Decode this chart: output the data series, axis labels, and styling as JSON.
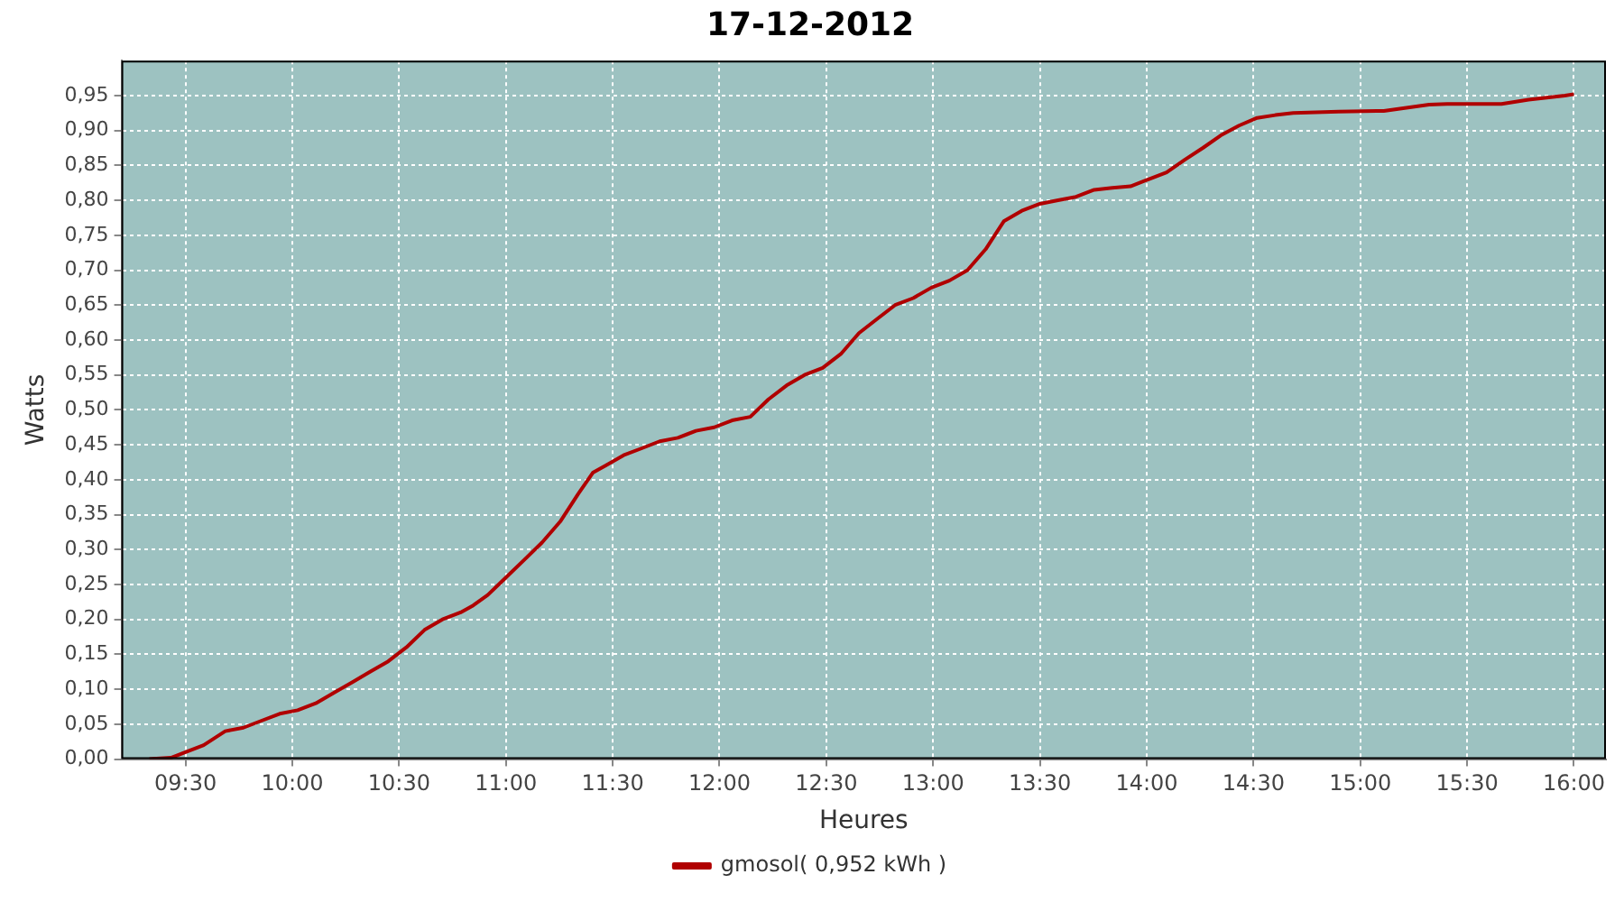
{
  "chart_data": {
    "type": "line",
    "title": "17-12-2012",
    "xlabel": "Heures",
    "ylabel": "Watts",
    "xlim": [
      9.2,
      16.15
    ],
    "xticks": [
      {
        "value": 9.5,
        "label": "09:30"
      },
      {
        "value": 10,
        "label": "10:00"
      },
      {
        "value": 10.5,
        "label": "10:30"
      },
      {
        "value": 11,
        "label": "11:00"
      },
      {
        "value": 11.5,
        "label": "11:30"
      },
      {
        "value": 12,
        "label": "12:00"
      },
      {
        "value": 12.5,
        "label": "12:30"
      },
      {
        "value": 13,
        "label": "13:00"
      },
      {
        "value": 13.5,
        "label": "13:30"
      },
      {
        "value": 14,
        "label": "14:00"
      },
      {
        "value": 14.5,
        "label": "14:30"
      },
      {
        "value": 15,
        "label": "15:00"
      },
      {
        "value": 15.5,
        "label": "15:30"
      },
      {
        "value": 16,
        "label": "16:00"
      }
    ],
    "ylim": [
      0,
      1.0
    ],
    "yticks": [
      {
        "value": 0,
        "label": "0,00"
      },
      {
        "value": 0.05,
        "label": "0,05"
      },
      {
        "value": 0.1,
        "label": "0,10"
      },
      {
        "value": 0.15,
        "label": "0,15"
      },
      {
        "value": 0.2,
        "label": "0,20"
      },
      {
        "value": 0.25,
        "label": "0,25"
      },
      {
        "value": 0.3,
        "label": "0,30"
      },
      {
        "value": 0.35,
        "label": "0,35"
      },
      {
        "value": 0.4,
        "label": "0,40"
      },
      {
        "value": 0.45,
        "label": "0,45"
      },
      {
        "value": 0.5,
        "label": "0,50"
      },
      {
        "value": 0.55,
        "label": "0,55"
      },
      {
        "value": 0.6,
        "label": "0,60"
      },
      {
        "value": 0.65,
        "label": "0,65"
      },
      {
        "value": 0.7,
        "label": "0,70"
      },
      {
        "value": 0.75,
        "label": "0,75"
      },
      {
        "value": 0.8,
        "label": "0,80"
      },
      {
        "value": 0.85,
        "label": "0,85"
      },
      {
        "value": 0.9,
        "label": "0,90"
      },
      {
        "value": 0.95,
        "label": "0,95"
      }
    ],
    "grid": true,
    "legend": "bottom",
    "marker": "none",
    "line_style": "solid",
    "series": [
      {
        "name": "gmosol( 0,952 kWh )",
        "color": "#b00000",
        "x": [
          9.331,
          9.432,
          9.5,
          9.585,
          9.686,
          9.771,
          9.856,
          9.941,
          10.025,
          10.11,
          10.195,
          10.28,
          10.364,
          10.449,
          10.534,
          10.619,
          10.703,
          10.788,
          10.847,
          10.915,
          11.0,
          11.085,
          11.169,
          11.254,
          11.339,
          11.407,
          11.466,
          11.551,
          11.636,
          11.72,
          11.805,
          11.89,
          11.975,
          12.059,
          12.144,
          12.229,
          12.314,
          12.398,
          12.483,
          12.568,
          12.653,
          12.737,
          12.822,
          12.907,
          12.992,
          13.076,
          13.161,
          13.246,
          13.331,
          13.415,
          13.5,
          13.585,
          13.669,
          13.754,
          13.839,
          13.924,
          14.008,
          14.093,
          14.178,
          14.263,
          14.347,
          14.432,
          14.517,
          14.602,
          14.686,
          14.898,
          15.11,
          15.322,
          15.407,
          15.534,
          15.661,
          15.788,
          15.873,
          15.958,
          16.0
        ],
        "values": [
          0,
          0.002,
          0.01,
          0.02,
          0.04,
          0.045,
          0.055,
          0.065,
          0.07,
          0.08,
          0.095,
          0.11,
          0.125,
          0.14,
          0.16,
          0.185,
          0.2,
          0.21,
          0.22,
          0.235,
          0.26,
          0.285,
          0.31,
          0.34,
          0.38,
          0.41,
          0.42,
          0.435,
          0.445,
          0.455,
          0.46,
          0.47,
          0.475,
          0.485,
          0.49,
          0.515,
          0.535,
          0.55,
          0.56,
          0.58,
          0.61,
          0.63,
          0.65,
          0.66,
          0.675,
          0.685,
          0.7,
          0.73,
          0.77,
          0.785,
          0.795,
          0.8,
          0.805,
          0.815,
          0.818,
          0.82,
          0.83,
          0.84,
          0.858,
          0.875,
          0.893,
          0.907,
          0.918,
          0.922,
          0.925,
          0.927,
          0.928,
          0.937,
          0.938,
          0.938,
          0.938,
          0.944,
          0.947,
          0.95,
          0.952
        ]
      }
    ]
  }
}
